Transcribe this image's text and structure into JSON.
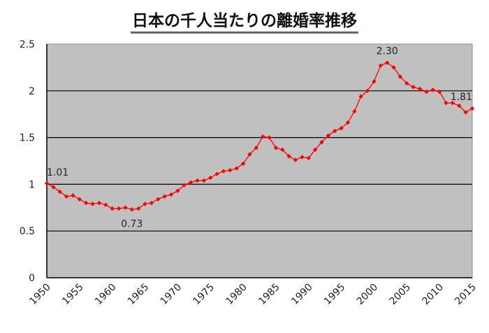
{
  "chart_data": {
    "type": "line",
    "title": "日本の千人当たりの離婚率推移",
    "xlabel": "",
    "ylabel": "",
    "ylim": [
      0,
      2.5
    ],
    "xlim": [
      1950,
      2015
    ],
    "grid": true,
    "legend": "none",
    "yticks": [
      "0",
      "0.5",
      "1",
      "1.5",
      "2",
      "2.5"
    ],
    "xticks": [
      "1950",
      "1955",
      "1960",
      "1965",
      "1970",
      "1975",
      "1980",
      "1985",
      "1990",
      "1995",
      "2000",
      "2005",
      "2010",
      "2015"
    ],
    "series": [
      {
        "name": "離婚率",
        "color": "#ff0000",
        "x": [
          1950,
          1951,
          1952,
          1953,
          1954,
          1955,
          1956,
          1957,
          1958,
          1959,
          1960,
          1961,
          1962,
          1963,
          1964,
          1965,
          1966,
          1967,
          1968,
          1969,
          1970,
          1971,
          1972,
          1973,
          1974,
          1975,
          1976,
          1977,
          1978,
          1979,
          1980,
          1981,
          1982,
          1983,
          1984,
          1985,
          1986,
          1987,
          1988,
          1989,
          1990,
          1991,
          1992,
          1993,
          1994,
          1995,
          1996,
          1997,
          1998,
          1999,
          2000,
          2001,
          2002,
          2003,
          2004,
          2005,
          2006,
          2007,
          2008,
          2009,
          2010,
          2011,
          2012,
          2013,
          2014,
          2015
        ],
        "values": [
          1.01,
          0.97,
          0.92,
          0.87,
          0.88,
          0.84,
          0.8,
          0.79,
          0.8,
          0.78,
          0.74,
          0.74,
          0.75,
          0.73,
          0.74,
          0.79,
          0.8,
          0.84,
          0.87,
          0.89,
          0.93,
          0.99,
          1.02,
          1.04,
          1.04,
          1.07,
          1.11,
          1.14,
          1.15,
          1.17,
          1.22,
          1.32,
          1.39,
          1.51,
          1.5,
          1.39,
          1.37,
          1.3,
          1.26,
          1.29,
          1.28,
          1.37,
          1.45,
          1.52,
          1.57,
          1.6,
          1.66,
          1.78,
          1.94,
          2.0,
          2.1,
          2.27,
          2.3,
          2.25,
          2.15,
          2.08,
          2.04,
          2.02,
          1.99,
          2.01,
          1.99,
          1.87,
          1.87,
          1.84,
          1.77,
          1.81
        ]
      }
    ],
    "annotations": [
      {
        "x": 1950,
        "y": 1.01,
        "text": "1.01"
      },
      {
        "x": 1963,
        "y": 0.73,
        "text": "0.73"
      },
      {
        "x": 2002,
        "y": 2.3,
        "text": "2.30"
      },
      {
        "x": 2015,
        "y": 1.81,
        "text": "1.81"
      }
    ],
    "plot_background": "#c0c0c0"
  }
}
